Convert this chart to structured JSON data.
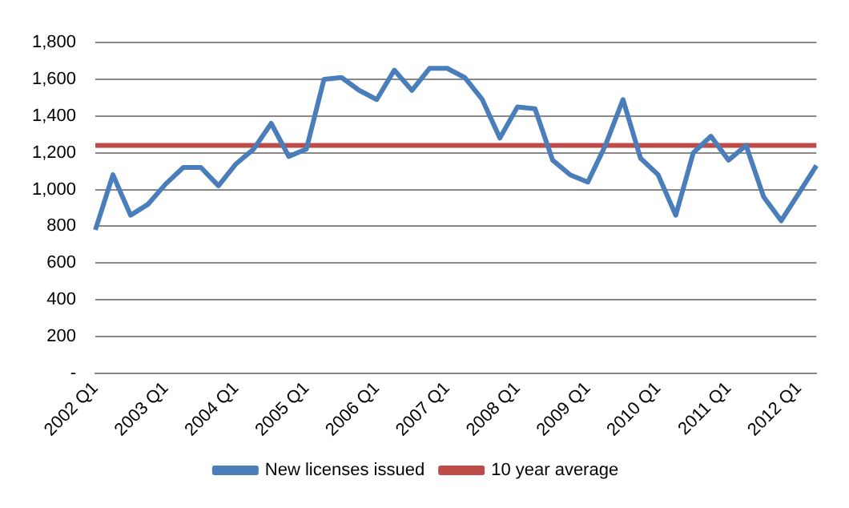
{
  "chart_data": {
    "type": "line",
    "categories": [
      "2002 Q1",
      null,
      null,
      null,
      "2003 Q1",
      null,
      null,
      null,
      "2004 Q1",
      null,
      null,
      null,
      "2005 Q1",
      null,
      null,
      null,
      "2006 Q1",
      null,
      null,
      null,
      "2007 Q1",
      null,
      null,
      null,
      "2008 Q1",
      null,
      null,
      null,
      "2009 Q1",
      null,
      null,
      null,
      "2010 Q1",
      null,
      null,
      null,
      "2011 Q1",
      null,
      null,
      null,
      "2012 Q1",
      null
    ],
    "series": [
      {
        "name": "New licenses issued",
        "color": "#4a7ebb",
        "values": [
          780,
          1080,
          860,
          920,
          1030,
          1120,
          1120,
          1020,
          1140,
          1220,
          1360,
          1180,
          1220,
          1600,
          1610,
          1540,
          1490,
          1650,
          1540,
          1660,
          1660,
          1610,
          1490,
          1280,
          1450,
          1440,
          1160,
          1080,
          1040,
          1240,
          1490,
          1170,
          1080,
          860,
          1200,
          1290,
          1160,
          1240,
          960,
          830,
          980,
          1130
        ]
      },
      {
        "name": "10 year average",
        "color": "#be4b48",
        "values": [
          1240,
          1240,
          1240,
          1240,
          1240,
          1240,
          1240,
          1240,
          1240,
          1240,
          1240,
          1240,
          1240,
          1240,
          1240,
          1240,
          1240,
          1240,
          1240,
          1240,
          1240,
          1240,
          1240,
          1240,
          1240,
          1240,
          1240,
          1240,
          1240,
          1240,
          1240,
          1240,
          1240,
          1240,
          1240,
          1240,
          1240,
          1240,
          1240,
          1240,
          1240,
          1240
        ]
      }
    ],
    "ylim": [
      0,
      1800
    ],
    "yticks": [
      {
        "value": 0,
        "label": "-"
      },
      {
        "value": 200,
        "label": "200"
      },
      {
        "value": 400,
        "label": "400"
      },
      {
        "value": 600,
        "label": "600"
      },
      {
        "value": 800,
        "label": "800"
      },
      {
        "value": 1000,
        "label": "1,000"
      },
      {
        "value": 1200,
        "label": "1,200"
      },
      {
        "value": 1400,
        "label": "1,400"
      },
      {
        "value": 1600,
        "label": "1,600"
      },
      {
        "value": 1800,
        "label": "1,800"
      }
    ],
    "grid": "y",
    "legend": "bottom",
    "marker": "none",
    "line_style": "solid"
  }
}
